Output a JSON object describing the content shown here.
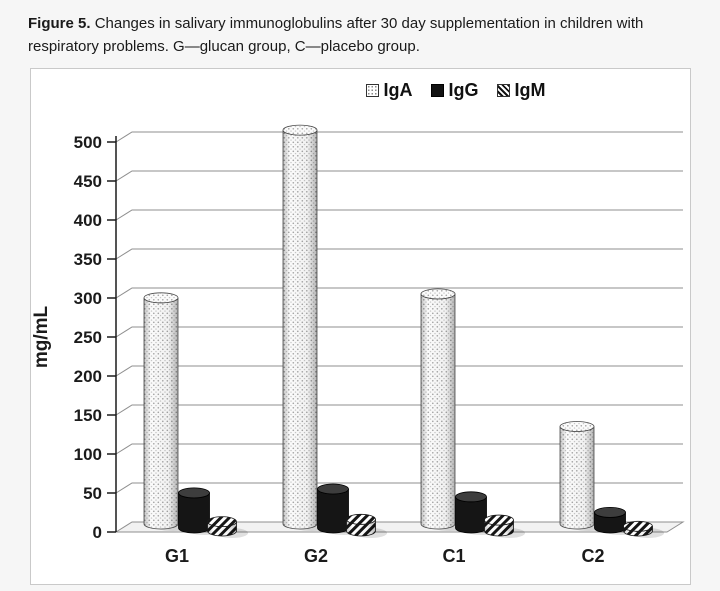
{
  "caption": {
    "label": "Figure 5.",
    "text": "Changes in salivary immunoglobulins after 30 day supplementation in children with respiratory problems. G—glucan group, C—placebo group."
  },
  "chart_data": {
    "type": "bar",
    "style": "3d-cylinder",
    "title": "",
    "categories": [
      "G1",
      "G2",
      "C1",
      "C2"
    ],
    "series": [
      {
        "name": "IgA",
        "pattern": "dots",
        "values": [
          290,
          505,
          295,
          125
        ]
      },
      {
        "name": "IgG",
        "pattern": "solid",
        "values": [
          45,
          50,
          40,
          20
        ]
      },
      {
        "name": "IgM",
        "pattern": "diagonal",
        "values": [
          12,
          15,
          14,
          6
        ]
      }
    ],
    "xlabel": "",
    "ylabel": "mg/mL",
    "ylim": [
      0,
      500
    ],
    "ytick_step": 50,
    "legend_position": "top",
    "grid": true
  },
  "colors": {
    "page_bg": "#f6f6f6",
    "chart_bg": "#ffffff",
    "chart_border": "#c9c9c9",
    "grid": "#8f8f8f",
    "text": "#1b1b1b",
    "bar_solid": "#151515"
  }
}
